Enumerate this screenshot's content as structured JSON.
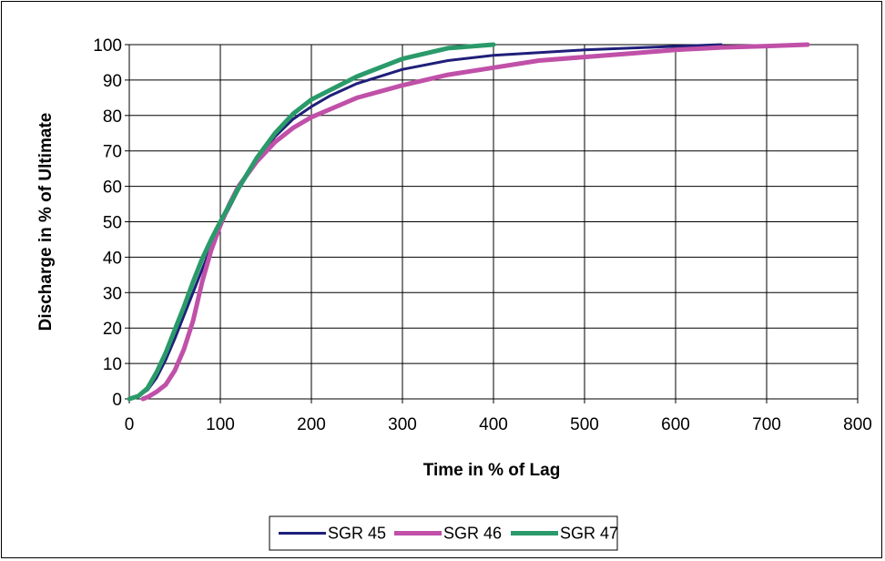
{
  "chart_data": {
    "type": "line",
    "title": "",
    "xlabel": "Time in % of Lag",
    "ylabel": "Discharge in % of Ultimate",
    "xlim": [
      0,
      800
    ],
    "ylim": [
      0,
      100
    ],
    "x_ticks": [
      "0",
      "100",
      "200",
      "300",
      "400",
      "500",
      "600",
      "700",
      "800"
    ],
    "y_ticks": [
      "0",
      "10",
      "20",
      "30",
      "40",
      "50",
      "60",
      "70",
      "80",
      "90",
      "100"
    ],
    "grid": true,
    "legend_position": "bottom",
    "series": [
      {
        "name": "SGR 45",
        "color": "#1f1f7a",
        "points": [
          [
            0,
            0
          ],
          [
            10,
            0.8
          ],
          [
            20,
            2.5
          ],
          [
            30,
            6
          ],
          [
            40,
            11
          ],
          [
            50,
            17
          ],
          [
            60,
            23.5
          ],
          [
            70,
            30
          ],
          [
            80,
            36.5
          ],
          [
            90,
            43
          ],
          [
            100,
            49
          ],
          [
            120,
            59
          ],
          [
            140,
            67.5
          ],
          [
            160,
            74
          ],
          [
            180,
            79
          ],
          [
            200,
            82.5
          ],
          [
            220,
            85.5
          ],
          [
            250,
            89
          ],
          [
            300,
            93
          ],
          [
            350,
            95.5
          ],
          [
            400,
            97
          ],
          [
            500,
            98.5
          ],
          [
            600,
            99.5
          ],
          [
            650,
            100
          ]
        ]
      },
      {
        "name": "SGR 46",
        "color": "#c050a8",
        "points": [
          [
            15,
            0
          ],
          [
            20,
            0.5
          ],
          [
            30,
            2
          ],
          [
            40,
            4
          ],
          [
            50,
            8
          ],
          [
            60,
            14
          ],
          [
            70,
            22
          ],
          [
            80,
            33
          ],
          [
            90,
            42
          ],
          [
            100,
            49
          ],
          [
            110,
            55
          ],
          [
            120,
            60
          ],
          [
            140,
            67
          ],
          [
            160,
            72.5
          ],
          [
            180,
            76.5
          ],
          [
            200,
            79.5
          ],
          [
            250,
            85
          ],
          [
            300,
            88.5
          ],
          [
            350,
            91.5
          ],
          [
            400,
            93.5
          ],
          [
            450,
            95.5
          ],
          [
            500,
            96.5
          ],
          [
            550,
            97.5
          ],
          [
            600,
            98.5
          ],
          [
            650,
            99.2
          ],
          [
            700,
            99.6
          ],
          [
            745,
            100
          ]
        ]
      },
      {
        "name": "SGR 47",
        "color": "#2a9a6a",
        "points": [
          [
            0,
            0
          ],
          [
            10,
            0.8
          ],
          [
            20,
            3
          ],
          [
            30,
            7.5
          ],
          [
            40,
            13
          ],
          [
            50,
            19.5
          ],
          [
            60,
            26
          ],
          [
            70,
            33
          ],
          [
            80,
            39.5
          ],
          [
            90,
            45
          ],
          [
            100,
            50
          ],
          [
            120,
            59.5
          ],
          [
            140,
            68
          ],
          [
            160,
            75
          ],
          [
            180,
            80.5
          ],
          [
            200,
            84.5
          ],
          [
            250,
            91
          ],
          [
            300,
            96
          ],
          [
            350,
            99
          ],
          [
            400,
            100
          ]
        ]
      }
    ]
  }
}
